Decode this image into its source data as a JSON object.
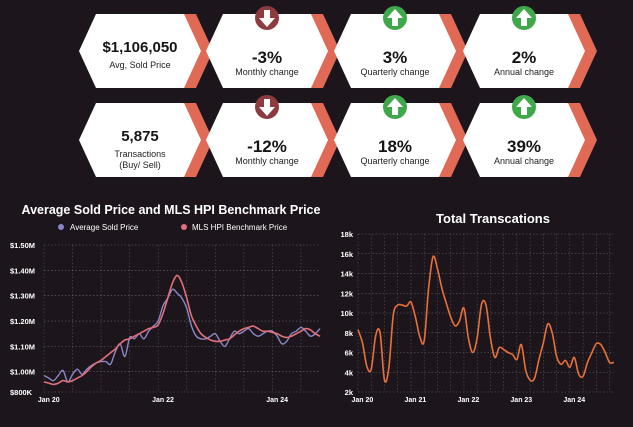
{
  "stats": {
    "row1": [
      {
        "value": "$1,106,050",
        "label": "Avg, Sold Price",
        "arrow": null
      },
      {
        "value": "-3%",
        "label": "Monthly change",
        "arrow": "down"
      },
      {
        "value": "3%",
        "label": "Quarterly change",
        "arrow": "up"
      },
      {
        "value": "2%",
        "label": "Annual change",
        "arrow": "up"
      }
    ],
    "row2": [
      {
        "value": "5,875",
        "label": "Transactions\n(Buy/ Sell)",
        "arrow": null
      },
      {
        "value": "-12%",
        "label": "Monthly change",
        "arrow": "down"
      },
      {
        "value": "18%",
        "label": "Quarterly change",
        "arrow": "up"
      },
      {
        "value": "39%",
        "label": "Annual change",
        "arrow": "up"
      }
    ]
  },
  "colors": {
    "background": "#1c161c",
    "card": "#ffffff",
    "card_shadow": "#e06a55",
    "arrow_up": "#3ea84a",
    "arrow_down": "#8e3b40",
    "series_avg": "#8a86c8",
    "series_mls": "#e0707a",
    "series_transactions": "#e8703a"
  },
  "chart_data": [
    {
      "type": "line",
      "title": "Average Sold Price and MLS HPI Benchmark Price",
      "legend_position": "top",
      "grid": true,
      "x_ticks": [
        "Jan 20",
        "Jan 22",
        "Jan 24"
      ],
      "y_ticks": [
        "$800K",
        "$1.00M",
        "$1.10M",
        "$1.20M",
        "$1.30M",
        "$1.40M",
        "$1.50M"
      ],
      "ylim": [
        0.92,
        1.5
      ],
      "x": [
        "2019-12",
        "2020-01",
        "2020-02",
        "2020-03",
        "2020-04",
        "2020-05",
        "2020-06",
        "2020-07",
        "2020-08",
        "2020-09",
        "2020-10",
        "2020-11",
        "2020-12",
        "2021-01",
        "2021-02",
        "2021-03",
        "2021-04",
        "2021-05",
        "2021-06",
        "2021-07",
        "2021-08",
        "2021-09",
        "2021-10",
        "2021-11",
        "2021-12",
        "2022-01",
        "2022-02",
        "2022-03",
        "2022-04",
        "2022-05",
        "2022-06",
        "2022-07",
        "2022-08",
        "2022-09",
        "2022-10",
        "2022-11",
        "2022-12",
        "2023-01",
        "2023-02",
        "2023-03",
        "2023-04",
        "2023-05",
        "2023-06",
        "2023-07",
        "2023-08",
        "2023-09",
        "2023-10",
        "2023-11",
        "2023-12",
        "2024-01",
        "2024-02",
        "2024-03",
        "2024-04",
        "2024-05",
        "2024-06",
        "2024-07",
        "2024-08",
        "2024-09",
        "2024-10"
      ],
      "series": [
        {
          "name": "Average Sold Price",
          "values": [
            0.985,
            0.975,
            0.965,
            0.985,
            1.005,
            0.96,
            0.99,
            1.01,
            0.99,
            1.01,
            1.025,
            1.035,
            1.04,
            1.04,
            1.03,
            1.08,
            1.11,
            1.06,
            1.135,
            1.13,
            1.15,
            1.13,
            1.16,
            1.18,
            1.2,
            1.26,
            1.29,
            1.325,
            1.31,
            1.29,
            1.25,
            1.18,
            1.14,
            1.13,
            1.13,
            1.14,
            1.15,
            1.12,
            1.1,
            1.13,
            1.16,
            1.15,
            1.16,
            1.17,
            1.15,
            1.14,
            1.15,
            1.16,
            1.16,
            1.14,
            1.11,
            1.12,
            1.15,
            1.16,
            1.175,
            1.16,
            1.14,
            1.15,
            1.17
          ]
        },
        {
          "name": "MLS HPI Benchmark Price",
          "values": [
            0.96,
            0.955,
            0.95,
            0.955,
            0.965,
            0.96,
            0.965,
            0.975,
            0.985,
            1.0,
            1.02,
            1.035,
            1.045,
            1.06,
            1.075,
            1.09,
            1.11,
            1.125,
            1.13,
            1.14,
            1.15,
            1.16,
            1.17,
            1.175,
            1.185,
            1.23,
            1.29,
            1.35,
            1.38,
            1.35,
            1.29,
            1.22,
            1.18,
            1.15,
            1.135,
            1.125,
            1.12,
            1.12,
            1.125,
            1.13,
            1.145,
            1.16,
            1.17,
            1.175,
            1.18,
            1.17,
            1.16,
            1.16,
            1.155,
            1.15,
            1.14,
            1.135,
            1.14,
            1.15,
            1.16,
            1.17,
            1.165,
            1.15,
            1.14
          ]
        }
      ]
    },
    {
      "type": "line",
      "title": "Total Transcations",
      "grid": true,
      "x_ticks": [
        "Jan 20",
        "Jan 21",
        "Jan 22",
        "Jan 23",
        "Jan 24"
      ],
      "y_ticks": [
        "2k",
        "4k",
        "6k",
        "8k",
        "10k",
        "12k",
        "14k",
        "16k",
        "18k"
      ],
      "ylim": [
        2,
        18
      ],
      "x": [
        "2019-12",
        "2020-01",
        "2020-02",
        "2020-03",
        "2020-04",
        "2020-05",
        "2020-06",
        "2020-07",
        "2020-08",
        "2020-09",
        "2020-10",
        "2020-11",
        "2020-12",
        "2021-01",
        "2021-02",
        "2021-03",
        "2021-04",
        "2021-05",
        "2021-06",
        "2021-07",
        "2021-08",
        "2021-09",
        "2021-10",
        "2021-11",
        "2021-12",
        "2022-01",
        "2022-02",
        "2022-03",
        "2022-04",
        "2022-05",
        "2022-06",
        "2022-07",
        "2022-08",
        "2022-09",
        "2022-10",
        "2022-11",
        "2022-12",
        "2023-01",
        "2023-02",
        "2023-03",
        "2023-04",
        "2023-05",
        "2023-06",
        "2023-07",
        "2023-08",
        "2023-09",
        "2023-10",
        "2023-11",
        "2023-12",
        "2024-01",
        "2024-02",
        "2024-03",
        "2024-04",
        "2024-05",
        "2024-06",
        "2024-07",
        "2024-08",
        "2024-09",
        "2024-10"
      ],
      "series": [
        {
          "name": "",
          "values": [
            8.3,
            7.0,
            4.6,
            4.3,
            7.7,
            8.0,
            3.2,
            4.5,
            9.8,
            10.8,
            10.8,
            10.7,
            11.1,
            9.6,
            7.6,
            7.2,
            12.5,
            15.7,
            14.5,
            12.5,
            11.0,
            9.6,
            8.7,
            9.2,
            10.5,
            7.5,
            6.0,
            7.5,
            10.9,
            10.8,
            7.5,
            5.5,
            6.5,
            6.3,
            6.0,
            5.8,
            5.3,
            6.8,
            4.2,
            3.2,
            3.4,
            5.3,
            7.0,
            8.9,
            8.0,
            5.6,
            4.8,
            5.2,
            4.5,
            5.5,
            3.8,
            3.6,
            5.0,
            6.0,
            6.9,
            6.8,
            6.0,
            5.0,
            5.0
          ]
        }
      ]
    }
  ]
}
